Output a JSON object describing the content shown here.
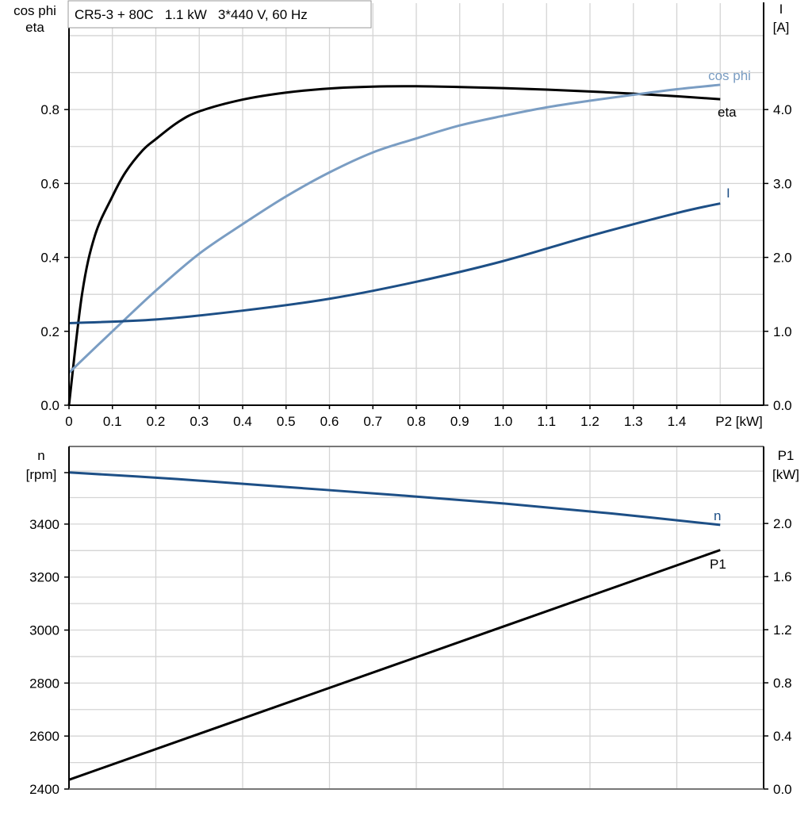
{
  "title": "CR5-3 + 80C   1.1 kW   3*440 V, 60 Hz",
  "chart_data": [
    {
      "type": "line",
      "ylabel_left": [
        "cos phi",
        "eta"
      ],
      "ylabel_right": [
        "I",
        "[A]"
      ],
      "xlabel": "P2 [kW]",
      "xlim": [
        0,
        1.6
      ],
      "ylim_left": [
        0,
        1.09
      ],
      "ylim_right": [
        0,
        5.45
      ],
      "grid": true,
      "x_ticks": [
        "0",
        "0.1",
        "0.2",
        "0.3",
        "0.4",
        "0.5",
        "0.6",
        "0.7",
        "0.8",
        "0.9",
        "1.0",
        "1.1",
        "1.2",
        "1.3",
        "1.4"
      ],
      "y_ticks_left": [
        "0.0",
        "0.2",
        "0.4",
        "0.6",
        "0.8"
      ],
      "y_ticks_right": [
        "0.0",
        "1.0",
        "2.0",
        "3.0",
        "4.0"
      ],
      "series": [
        {
          "name": "eta",
          "axis": "left",
          "color": "#000000",
          "x": [
            0,
            0.03,
            0.06,
            0.1,
            0.13,
            0.17,
            0.2,
            0.25,
            0.3,
            0.4,
            0.5,
            0.6,
            0.7,
            0.8,
            0.9,
            1.0,
            1.1,
            1.2,
            1.3,
            1.4,
            1.5
          ],
          "y": [
            0,
            0.3,
            0.46,
            0.565,
            0.63,
            0.69,
            0.72,
            0.765,
            0.795,
            0.827,
            0.846,
            0.857,
            0.862,
            0.863,
            0.861,
            0.858,
            0.854,
            0.849,
            0.843,
            0.836,
            0.828
          ]
        },
        {
          "name": "cos phi",
          "axis": "left",
          "color": "#7a9dc3",
          "x": [
            0,
            0.1,
            0.2,
            0.3,
            0.4,
            0.5,
            0.6,
            0.7,
            0.8,
            0.9,
            1.0,
            1.1,
            1.2,
            1.3,
            1.4,
            1.5
          ],
          "y": [
            0.088,
            0.2,
            0.31,
            0.41,
            0.49,
            0.565,
            0.63,
            0.684,
            0.722,
            0.757,
            0.783,
            0.806,
            0.824,
            0.84,
            0.855,
            0.867
          ]
        },
        {
          "name": "I",
          "axis": "right",
          "color": "#1d4f86",
          "x": [
            0,
            0.2,
            0.4,
            0.6,
            0.8,
            1.0,
            1.2,
            1.4,
            1.5
          ],
          "y": [
            1.11,
            1.16,
            1.28,
            1.44,
            1.67,
            1.95,
            2.29,
            2.6,
            2.73
          ]
        }
      ]
    },
    {
      "type": "line",
      "ylabel_left": [
        "n",
        "[rpm]"
      ],
      "ylabel_right": [
        "P1",
        "[kW]"
      ],
      "xlim": [
        0,
        1.6
      ],
      "ylim_left": [
        2400,
        3693
      ],
      "ylim_right": [
        0,
        2.58
      ],
      "grid": true,
      "y_ticks_left": [
        "2400",
        "2600",
        "2800",
        "3000",
        "3200",
        "3400"
      ],
      "y_ticks_right": [
        "0.0",
        "0.4",
        "0.8",
        "1.2",
        "1.6",
        "2.0"
      ],
      "series": [
        {
          "name": "n",
          "axis": "left",
          "color": "#1d4f86",
          "x": [
            0,
            0.25,
            0.5,
            0.75,
            1.0,
            1.25,
            1.5
          ],
          "y": [
            3595,
            3570,
            3540,
            3510,
            3478,
            3440,
            3397
          ]
        },
        {
          "name": "P1",
          "axis": "right",
          "color": "#000000",
          "x": [
            0,
            1.5
          ],
          "y": [
            0.07,
            1.8
          ]
        }
      ]
    }
  ]
}
